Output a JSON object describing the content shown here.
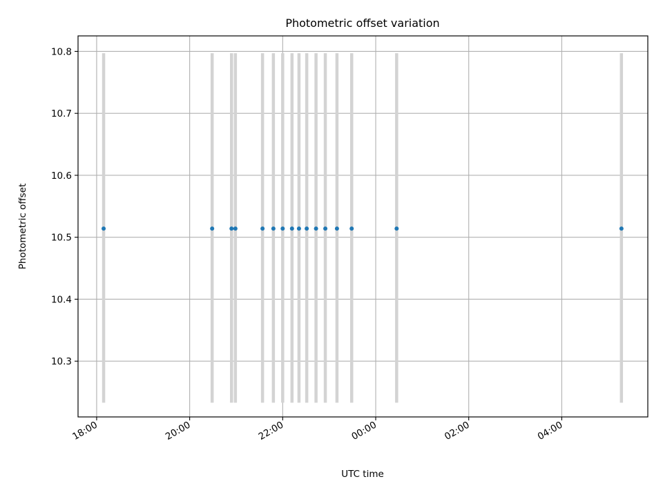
{
  "chart_data": {
    "type": "scatter",
    "title": "Photometric offset variation",
    "xlabel": "UTC time",
    "ylabel": "Photometric offset",
    "x_ticks": [
      "18:00",
      "20:00",
      "22:00",
      "00:00",
      "02:00",
      "04:00"
    ],
    "x_tick_hours": [
      18,
      20,
      22,
      24,
      26,
      28
    ],
    "x_range_hours": [
      17.6,
      29.85
    ],
    "y_ticks": [
      "10.3",
      "10.4",
      "10.5",
      "10.6",
      "10.7",
      "10.8"
    ],
    "ylim": [
      10.21,
      10.825
    ],
    "grid": true,
    "x": [
      "18:09",
      "20:29",
      "20:54",
      "20:59",
      "21:34",
      "21:48",
      "22:00",
      "22:12",
      "22:21",
      "22:31",
      "22:43",
      "22:55",
      "23:10",
      "23:29",
      "00:27",
      "05:17"
    ],
    "values": [
      10.514,
      10.514,
      10.514,
      10.514,
      10.514,
      10.514,
      10.514,
      10.514,
      10.514,
      10.514,
      10.514,
      10.514,
      10.514,
      10.514,
      10.514,
      10.514
    ],
    "error_low": [
      10.233,
      10.233,
      10.233,
      10.233,
      10.233,
      10.233,
      10.233,
      10.233,
      10.233,
      10.233,
      10.233,
      10.233,
      10.233,
      10.233,
      10.233,
      10.233
    ],
    "error_high": [
      10.797,
      10.797,
      10.797,
      10.797,
      10.797,
      10.797,
      10.797,
      10.797,
      10.797,
      10.797,
      10.797,
      10.797,
      10.797,
      10.797,
      10.797,
      10.797
    ],
    "colors": {
      "points": "#1f77b4",
      "errorbars": "#d3d3d3",
      "grid": "#b0b0b0",
      "axes": "#000000"
    }
  }
}
